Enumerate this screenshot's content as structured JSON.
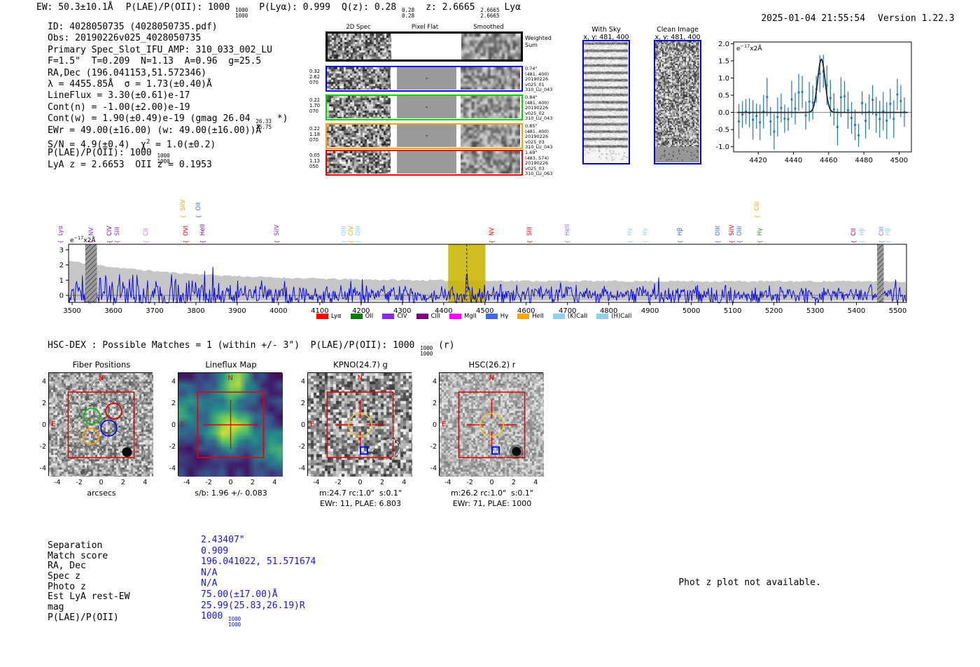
{
  "header": {
    "segments": [
      {
        "t": "EW: 50.3±10.1Å",
        "gap": 18
      },
      {
        "t": "P(LAE)/P(OII): 1000 "
      },
      {
        "frac": [
          "1000",
          "1000"
        ],
        "gap": 16
      },
      {
        "t": "P(Lyα): 0.999",
        "gap": 16
      },
      {
        "t": "Q(z): 0.28 "
      },
      {
        "frac": [
          "0.28",
          "0.28"
        ],
        "gap": 16
      },
      {
        "t": "z: 2.6665 "
      },
      {
        "frac": [
          "2.6665",
          "2.6665"
        ],
        "gap": 7
      },
      {
        "t": "Lyα"
      }
    ],
    "timestamp": "2025-01-04 21:55:54",
    "version": "Version 1.22.3"
  },
  "info": {
    "lines": [
      [
        {
          "t": "ID: 4028050735 (4028050735.pdf)"
        }
      ],
      [
        {
          "t": "Obs: 20190226v025_4028050735"
        }
      ],
      [
        {
          "t": "Primary Spec_Slot_IFU_AMP: 310_033_002_LU"
        }
      ],
      [
        {
          "t": "F=1.5\"  T=0.209  N=1.13  A=0.96  g=25.5"
        }
      ],
      [
        {
          "t": "RA,Dec (196.041153,51.572346)"
        }
      ],
      [
        {
          "t": "λ = 4455.85Å  σ = 1.73(±0.40)Å"
        }
      ],
      [
        {
          "t": "LineFlux = 3.30(±0.61)e-17"
        }
      ],
      [
        {
          "t": "Cont(n) = -1.00(±2.00)e-19"
        }
      ],
      [
        {
          "t": "Cont(w) = 1.90(±0.49)e-19 (gmag 26.04 "
        },
        {
          "frac": [
            "26.33",
            "25.75"
          ]
        },
        {
          "t": " *)"
        }
      ],
      [
        {
          "t": "EWr = 49.00(±16.00) (w: 49.00(±16.00))Å"
        }
      ],
      [
        {
          "t": "S/N = 4.9(±0.4)  χ"
        },
        {
          "sup": "2"
        },
        {
          "t": " = 1.0(±0.2)"
        }
      ],
      [
        {
          "t": "P(LAE)/P(OII): 1000 "
        },
        {
          "frac": [
            "1000",
            "1000"
          ]
        }
      ],
      [
        {
          "t": "LyA z = 2.6653  OII z = 0.1953"
        }
      ]
    ]
  },
  "spec2d": {
    "col_titles": [
      "2D Spec",
      "Pixel Flat",
      "Smoothed"
    ],
    "weighted_sum_label": [
      "Weighted",
      "Sum"
    ],
    "rows": [
      {
        "color": "#0000ee",
        "left": [
          "0.32",
          "2.62",
          "070"
        ],
        "right": [
          "0.74\"",
          "(481, 400)",
          "20190226",
          "v025_01",
          "310_LU_043"
        ]
      },
      {
        "color": "#00d400",
        "left": [
          "0.22",
          "1.70",
          "070"
        ],
        "right": [
          "0.84\"",
          "(481, 400)",
          "20190226",
          "v025_02",
          "310_LU_043"
        ]
      },
      {
        "color": "#ff9f00",
        "left": [
          "0.22",
          "1.18",
          "070"
        ],
        "right": [
          "0.85\"",
          "(481, 400)",
          "20190226",
          "v025_03",
          "310_LU_043"
        ]
      },
      {
        "color": "#ee0000",
        "left": [
          "0.05",
          "1.13",
          "050"
        ],
        "right": [
          "1.69\"",
          "(483, 574)",
          "20190226",
          "v025_03",
          "310_LU_063"
        ]
      }
    ]
  },
  "sky_panels": {
    "with_sky": {
      "title": "With Sky",
      "subtitle": "x, y: 481, 400"
    },
    "clean": {
      "title": "Clean Image",
      "subtitle": "x, y: 481, 400"
    }
  },
  "chart_data": [
    {
      "type": "scatter",
      "name": "line-fit-plot",
      "unit_annotation": "e−17x2Å",
      "x_ticks": [
        4420,
        4440,
        4460,
        4480,
        4500
      ],
      "y_ticks": [
        -1.0,
        -0.5,
        0.0,
        0.5,
        1.0,
        1.5,
        2.0
      ],
      "x_range": [
        4406,
        4507
      ],
      "y_range": [
        -1.15,
        2.05
      ],
      "gaussian_fit": {
        "center": 4455.85,
        "sigma": 2.1,
        "amplitude": 1.55,
        "baseline": 0.0
      },
      "point_spacing": 2,
      "noise_seed": 7,
      "marker_color": "#1f77b4",
      "fit_color": "#2a2a2a"
    },
    {
      "type": "line",
      "name": "full-spectrum",
      "unit_annotation": "e−17x2Å",
      "x_ticks": [
        3500,
        3600,
        3700,
        3800,
        3900,
        4000,
        4100,
        4200,
        4300,
        4400,
        4500,
        4600,
        4700,
        4800,
        4900,
        5000,
        5100,
        5200,
        5300,
        5400,
        5500
      ],
      "y_ticks": [
        0,
        1,
        2,
        3
      ],
      "x_range": [
        3491,
        5521
      ],
      "y_range": [
        -0.46,
        3.37
      ],
      "emission_peak": {
        "wavelength": 4455.85,
        "height": 1.4
      },
      "highlight_band": {
        "x0": 4411,
        "x1": 4501,
        "color": "#c9b400"
      },
      "dashed_line_x": 4456,
      "sky_absorption_bands": [
        [
          3532,
          3560
        ],
        [
          5450,
          5466
        ]
      ],
      "noise_seed": 99,
      "band_seed": 11,
      "series": [
        {
          "name": "spectrum",
          "color": "#0000e0"
        },
        {
          "name": "error-band",
          "color": "#c6c6c6"
        }
      ],
      "line_labels": [
        {
          "text": "Lyα",
          "wavelength": 3493,
          "color": "#8a2be2",
          "row": 0
        },
        {
          "text": "NV",
          "wavelength": 3567,
          "color": "#8a2be2",
          "row": 0
        },
        {
          "text": "CIV",
          "wavelength": 3612,
          "color": "#6a0dad",
          "row": 0
        },
        {
          "text": "SiII",
          "wavelength": 3630,
          "color": "#8a2be2",
          "row": 0
        },
        {
          "text": "CII",
          "wavelength": 3700,
          "color": "#da70d6",
          "row": 0
        },
        {
          "text": "SiIV",
          "wavelength": 3790,
          "color": "#ffa500",
          "row": 1
        },
        {
          "text": "OVI",
          "wavelength": 3796,
          "color": "#ff0000",
          "row": 0
        },
        {
          "text": "OII",
          "wavelength": 3827,
          "color": "#4169e1",
          "row": 1
        },
        {
          "text": "HeII",
          "wavelength": 3837,
          "color": "#8b008b",
          "row": 0
        },
        {
          "text": "SiIV",
          "wavelength": 4017,
          "color": "#8a2be2",
          "row": 0
        },
        {
          "text": "OIII",
          "wavelength": 4180,
          "color": "#87ceeb",
          "row": 0
        },
        {
          "text": "CIV",
          "wavelength": 4197,
          "color": "#ffa500",
          "row": 0
        },
        {
          "text": "OIII",
          "wavelength": 4213,
          "color": "#87ceeb",
          "row": 0
        },
        {
          "text": "NV",
          "wavelength": 4537,
          "color": "#ff0000",
          "row": 0
        },
        {
          "text": "SiII",
          "wavelength": 4630,
          "color": "#ff0000",
          "row": 0
        },
        {
          "text": "HeII",
          "wavelength": 4720,
          "color": "#9370db",
          "row": 0
        },
        {
          "text": "Hγ",
          "wavelength": 4871,
          "color": "#87ceeb",
          "row": 0
        },
        {
          "text": "Hγ",
          "wavelength": 4909,
          "color": "#87ceeb",
          "row": 0
        },
        {
          "text": "Hβ",
          "wavelength": 4993,
          "color": "#4169e1",
          "row": 0
        },
        {
          "text": "OIII",
          "wavelength": 5085,
          "color": "#4169e1",
          "row": 0
        },
        {
          "text": "SiIV",
          "wavelength": 5119,
          "color": "#ff0000",
          "row": 0
        },
        {
          "text": "OIII",
          "wavelength": 5138,
          "color": "#4169e1",
          "row": 0
        },
        {
          "text": "CIII",
          "wavelength": 5180,
          "color": "#ffa500",
          "row": 1
        },
        {
          "text": "Hγ",
          "wavelength": 5187,
          "color": "#2e8b22",
          "row": 0
        },
        {
          "text": "CII",
          "wavelength": 5414,
          "color": "#800080",
          "row": 0
        },
        {
          "text": "Hβ",
          "wavelength": 5435,
          "color": "#87ceeb",
          "row": 0
        },
        {
          "text": "CIII",
          "wavelength": 5482,
          "color": "#9370db",
          "row": 0
        },
        {
          "text": "Hβ",
          "wavelength": 5497,
          "color": "#87ceeb",
          "row": 0
        }
      ]
    }
  ],
  "legend": [
    {
      "label": "Lyα",
      "color": "#ff0000"
    },
    {
      "label": "OII",
      "color": "#008000"
    },
    {
      "label": "CIV",
      "color": "#8a2be2"
    },
    {
      "label": "CIII",
      "color": "#800080"
    },
    {
      "label": "MgII",
      "color": "#ff00ff"
    },
    {
      "label": "Hγ",
      "color": "#4169e1"
    },
    {
      "label": "HeII",
      "color": "#ffa500"
    },
    {
      "label": "(K)CaII",
      "color": "#93cfe8"
    },
    {
      "label": "(H)CaII",
      "color": "#93cfe8"
    }
  ],
  "hsc_line": {
    "segments": [
      {
        "t": "HSC-DEX : Possible Matches = 1 (within +/- 3\")  P(LAE)/P(OII): 1000 "
      },
      {
        "frac": [
          "1000",
          "1000"
        ]
      },
      {
        "t": " (r)"
      }
    ]
  },
  "cutouts": {
    "axis_ticks": [
      -4,
      -2,
      0,
      2,
      4
    ],
    "compass": {
      "north": "N",
      "east": "E"
    },
    "panels": [
      {
        "title": "Fiber Positions",
        "xlabel": "arcsecs",
        "captions": []
      },
      {
        "title": "Lineflux Map",
        "captions": [
          "s/b: 1.96 +/- 0.083"
        ]
      },
      {
        "title": "KPNO(24.7) g",
        "captions": [
          "m:24.7 rc:1.0\"  s:0.1\"",
          "EWr: 11, PLAE: 6.803"
        ]
      },
      {
        "title": "HSC(26.2) r",
        "captions": [
          "m:26.2 rc:1.0\"  s:0.1\"",
          "EWr: 71, PLAE: 1000"
        ]
      }
    ]
  },
  "match_table": {
    "labels": [
      "Separation",
      "Match score",
      "RA, Dec",
      "Spec z",
      "Photo z",
      "Est LyA rest-EW",
      "mag",
      "P(LAE)/P(OII)"
    ],
    "values": [
      [
        {
          "t": "2.43407\""
        }
      ],
      [
        {
          "t": "0.909"
        }
      ],
      [
        {
          "t": "196.041022, 51.571674"
        }
      ],
      [
        {
          "t": "N/A"
        }
      ],
      [
        {
          "t": "N/A"
        }
      ],
      [
        {
          "t": "75.00(±17.00)Å"
        }
      ],
      [
        {
          "t": "25.99(25.83,26.19)R"
        }
      ],
      [
        {
          "t": "1000 "
        },
        {
          "frac": [
            "1000",
            "1000"
          ]
        }
      ]
    ],
    "value_color": "#1616dd"
  },
  "photz_note": "Phot z plot not available."
}
